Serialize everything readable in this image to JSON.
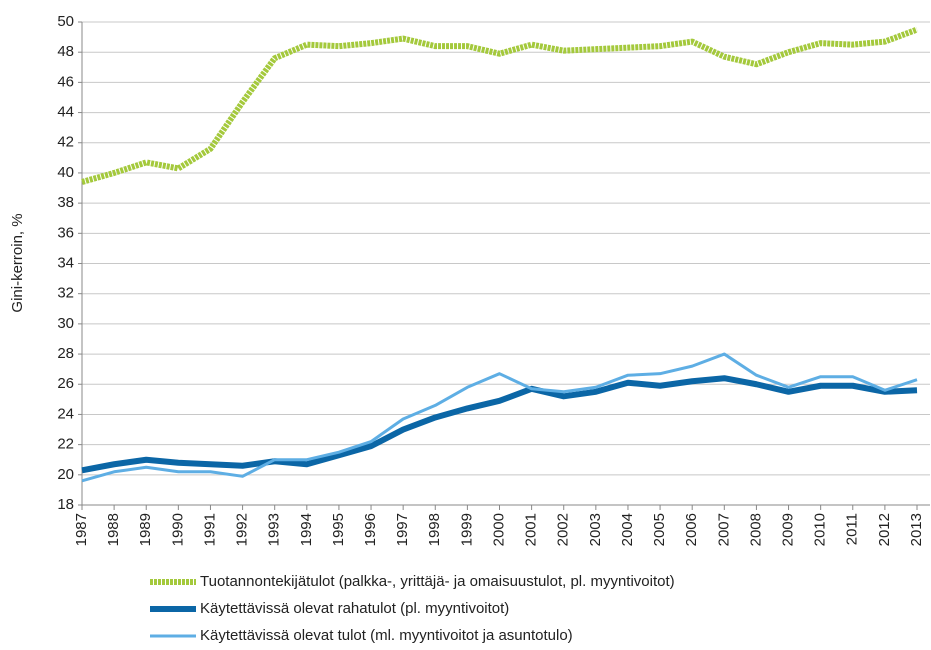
{
  "chart_data": {
    "type": "line",
    "ylabel": "Gini-kerroin, %",
    "categories": [
      "1987",
      "1988",
      "1989",
      "1990",
      "1991",
      "1992",
      "1993",
      "1994",
      "1995",
      "1996",
      "1997",
      "1998",
      "1999",
      "2000",
      "2001",
      "2002",
      "2003",
      "2004",
      "2005",
      "2006",
      "2007",
      "2008",
      "2009",
      "2010",
      "2011",
      "2012",
      "2013"
    ],
    "series": [
      {
        "name": "Tuotannontekijätulot (palkka-, yrittäjä- ja omaisuustulot, pl. myyntivoitot)",
        "color": "#a4c93c",
        "values": [
          39.4,
          40.0,
          40.7,
          40.3,
          41.6,
          44.7,
          47.6,
          48.5,
          48.4,
          48.6,
          48.9,
          48.4,
          48.4,
          47.9,
          48.5,
          48.1,
          48.2,
          48.3,
          48.4,
          48.7,
          47.7,
          47.2,
          48.0,
          48.6,
          48.5,
          48.7,
          49.5
        ]
      },
      {
        "name": "Käytettävissä olevat rahatulot (pl. myyntivoitot)",
        "color": "#0b66a6",
        "values": [
          20.3,
          20.7,
          21.0,
          20.8,
          20.7,
          20.6,
          20.9,
          20.7,
          21.3,
          21.9,
          23.0,
          23.8,
          24.4,
          24.9,
          25.7,
          25.2,
          25.5,
          26.1,
          25.9,
          26.2,
          26.4,
          26.0,
          25.5,
          25.9,
          25.9,
          25.5,
          25.6
        ]
      },
      {
        "name": "Käytettävissä olevat tulot (ml. myyntivoitot ja asuntotulo)",
        "color": "#5eaee4",
        "values": [
          19.6,
          20.2,
          20.5,
          20.2,
          20.2,
          19.9,
          21.0,
          21.0,
          21.5,
          22.2,
          23.7,
          24.6,
          25.8,
          26.7,
          25.7,
          25.5,
          25.8,
          26.6,
          26.7,
          27.2,
          28.0,
          26.6,
          25.8,
          26.5,
          26.5,
          25.6,
          26.3
        ]
      }
    ],
    "ylim": [
      18,
      50
    ],
    "yticks": [
      18,
      20,
      22,
      24,
      26,
      28,
      30,
      32,
      34,
      36,
      38,
      40,
      42,
      44,
      46,
      48,
      50
    ],
    "grid": true
  }
}
